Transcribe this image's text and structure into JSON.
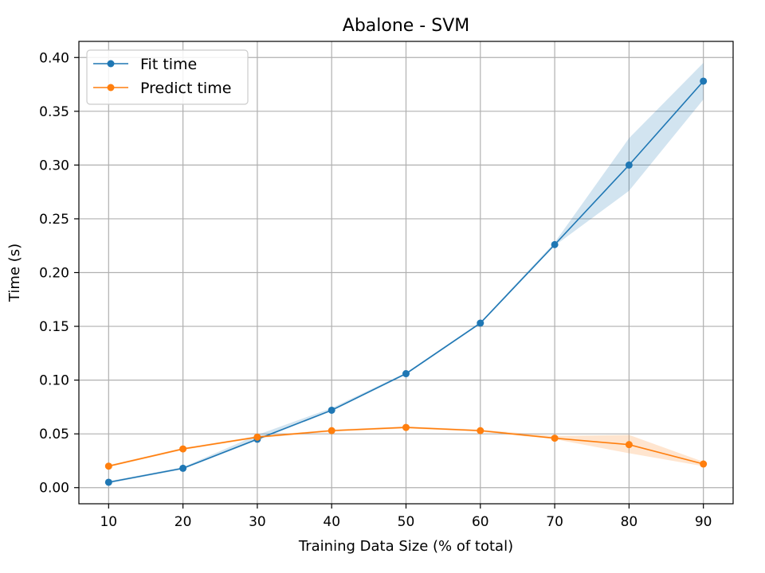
{
  "chart_data": {
    "type": "line",
    "title": "Abalone - SVM",
    "xlabel": "Training Data Size (% of total)",
    "ylabel": "Time (s)",
    "x": [
      10,
      20,
      30,
      40,
      50,
      60,
      70,
      80,
      90
    ],
    "xlim": [
      6,
      94
    ],
    "ylim": [
      -0.015,
      0.415
    ],
    "xticks": [
      10,
      20,
      30,
      40,
      50,
      60,
      70,
      80,
      90
    ],
    "yticks": [
      0.0,
      0.05,
      0.1,
      0.15,
      0.2,
      0.25,
      0.3,
      0.35,
      0.4
    ],
    "ytick_labels": [
      "0.00",
      "0.05",
      "0.10",
      "0.15",
      "0.20",
      "0.25",
      "0.30",
      "0.35",
      "0.40"
    ],
    "grid": true,
    "legend_position": "top-left",
    "series": [
      {
        "name": "Fit time",
        "color": "#1f77b4",
        "values": [
          0.005,
          0.018,
          0.045,
          0.072,
          0.106,
          0.153,
          0.226,
          0.3,
          0.378
        ],
        "lower": [
          0.004,
          0.017,
          0.044,
          0.071,
          0.105,
          0.152,
          0.225,
          0.276,
          0.361
        ],
        "upper": [
          0.006,
          0.019,
          0.049,
          0.074,
          0.107,
          0.154,
          0.228,
          0.325,
          0.395
        ]
      },
      {
        "name": "Predict time",
        "color": "#ff7f0e",
        "values": [
          0.02,
          0.036,
          0.047,
          0.053,
          0.056,
          0.053,
          0.046,
          0.04,
          0.022
        ],
        "lower": [
          0.019,
          0.035,
          0.046,
          0.052,
          0.055,
          0.052,
          0.045,
          0.032,
          0.02
        ],
        "upper": [
          0.021,
          0.037,
          0.048,
          0.054,
          0.057,
          0.054,
          0.048,
          0.049,
          0.024
        ]
      }
    ]
  }
}
